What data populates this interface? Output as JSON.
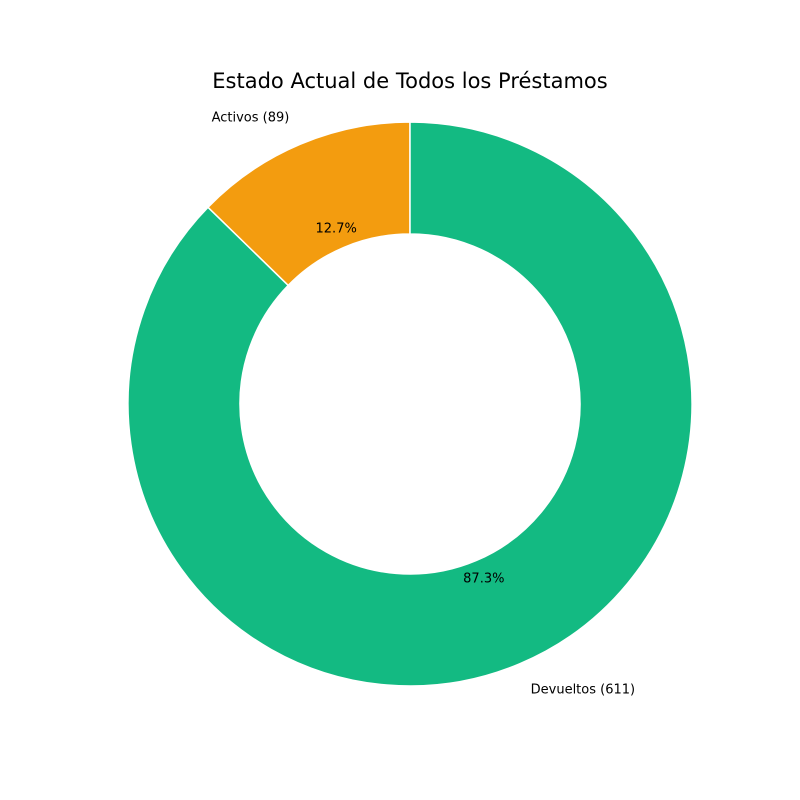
{
  "chart_data": {
    "type": "pie",
    "title": "Estado Actual de Todos los Préstamos",
    "donut": true,
    "slices": [
      {
        "label": "Activos (89)",
        "value": 89,
        "percent_label": "12.7%",
        "color": "#F39C0F"
      },
      {
        "label": "Devueltos (611)",
        "value": 611,
        "percent_label": "87.3%",
        "color": "#13BA82"
      }
    ]
  }
}
